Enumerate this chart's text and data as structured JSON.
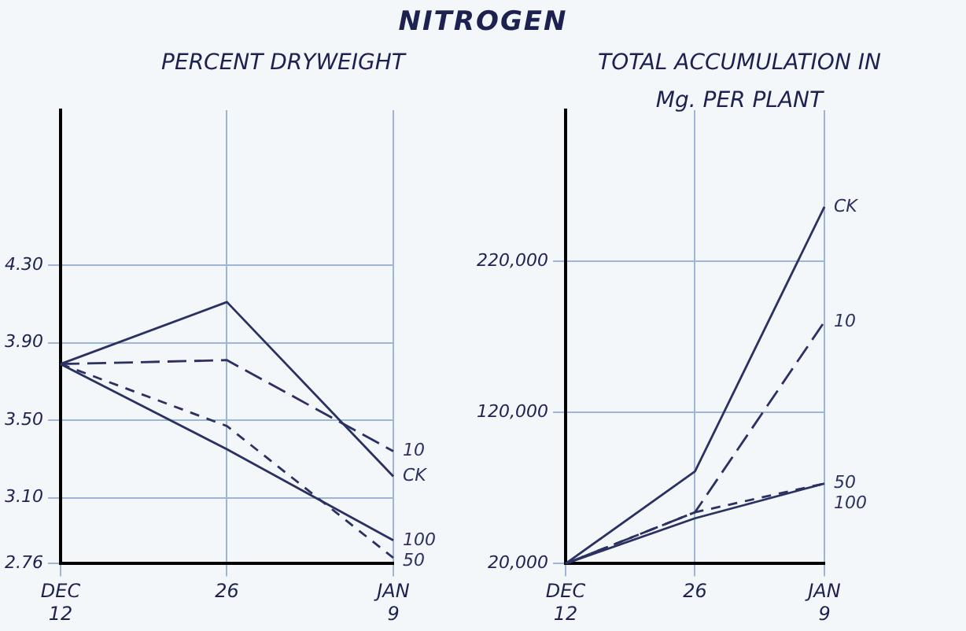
{
  "chart_data": [
    {
      "type": "line",
      "title": "NITROGEN",
      "subtitle": "PERCENT DRYWEIGHT",
      "categories": [
        "DEC 12",
        "26",
        "JAN 9"
      ],
      "series": [
        {
          "name": "CK",
          "color": "#2b3160",
          "line_style": "solid",
          "values": [
            3.79,
            4.11,
            3.21
          ]
        },
        {
          "name": "10",
          "color": "#2b3160",
          "line_style": "dashed",
          "values": [
            3.79,
            3.81,
            3.34
          ]
        },
        {
          "name": "50",
          "color": "#2b3160",
          "line_style": "dotted",
          "values": [
            3.79,
            3.47,
            2.79
          ]
        },
        {
          "name": "100",
          "color": "#2b3160",
          "line_style": "solid",
          "values": [
            3.79,
            3.35,
            2.88
          ]
        }
      ],
      "ylim": [
        2.76,
        5.1
      ],
      "yticks": [
        {
          "value": 2.76,
          "label": "2.76"
        },
        {
          "value": 3.1,
          "label": "3.10"
        },
        {
          "value": 3.5,
          "label": "3.50"
        },
        {
          "value": 3.9,
          "label": "3.90"
        },
        {
          "value": 4.3,
          "label": "4.30"
        }
      ],
      "grid": true,
      "marker": "none"
    },
    {
      "type": "line",
      "subtitle": "TOTAL ACCUMULATION IN Mg. PER PLANT",
      "categories": [
        "DEC 12",
        "26",
        "JAN 9"
      ],
      "series": [
        {
          "name": "CK",
          "color": "#2b3160",
          "line_style": "solid",
          "values": [
            20000,
            81000,
            256000
          ]
        },
        {
          "name": "10",
          "color": "#2b3160",
          "line_style": "dashed",
          "values": [
            20000,
            54000,
            180000
          ]
        },
        {
          "name": "50",
          "color": "#2b3160",
          "line_style": "dotted",
          "values": [
            20000,
            54000,
            73000
          ]
        },
        {
          "name": "100",
          "color": "#2b3160",
          "line_style": "solid",
          "values": [
            20000,
            50000,
            73000
          ]
        }
      ],
      "ylim": [
        20000,
        320000
      ],
      "yticks": [
        {
          "value": 20000,
          "label": "20,000"
        },
        {
          "value": 120000,
          "label": "120,000"
        },
        {
          "value": 220000,
          "label": "220,000"
        }
      ],
      "grid": true,
      "marker": "none"
    }
  ]
}
